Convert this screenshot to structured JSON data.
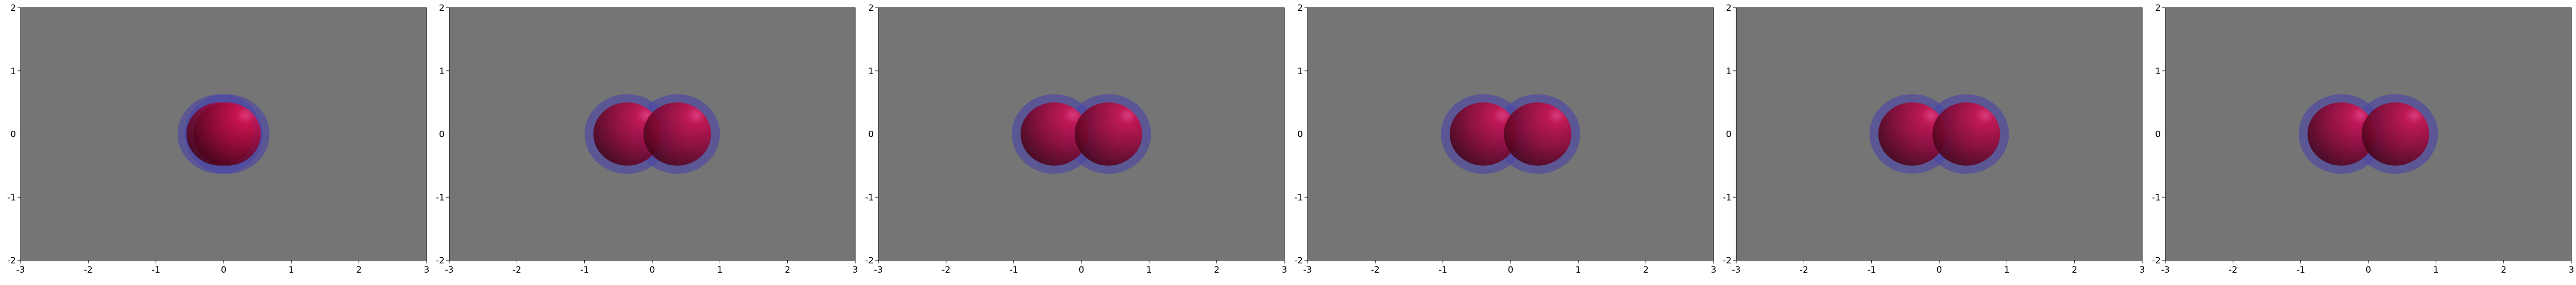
{
  "figure": {
    "background": "#ffffff"
  },
  "chart_data": [
    {
      "type": "scatter",
      "title": "",
      "xlabel": "",
      "ylabel": "",
      "xlim": [
        -3,
        3
      ],
      "ylim": [
        -2,
        2
      ],
      "xticks": [
        "-3",
        "-2",
        "-1",
        "0",
        "1",
        "2",
        "3"
      ],
      "yticks": [
        "-2",
        "-1",
        "0",
        "1",
        "2"
      ],
      "grid": false,
      "background_color": "#757575",
      "spheres": [
        {
          "x": -0.05,
          "y": 0.0,
          "radius": 0.5
        },
        {
          "x": 0.05,
          "y": 0.0,
          "radius": 0.5
        }
      ]
    },
    {
      "type": "scatter",
      "title": "",
      "xlabel": "",
      "ylabel": "",
      "xlim": [
        -3,
        3
      ],
      "ylim": [
        -2,
        2
      ],
      "xticks": [
        "-3",
        "-2",
        "-1",
        "0",
        "1",
        "2",
        "3"
      ],
      "yticks": [
        "-2",
        "-1",
        "0",
        "1",
        "2"
      ],
      "grid": false,
      "background_color": "#757575",
      "spheres": [
        {
          "x": -0.37,
          "y": 0.0,
          "radius": 0.5
        },
        {
          "x": 0.37,
          "y": 0.0,
          "radius": 0.5
        }
      ]
    },
    {
      "type": "scatter",
      "title": "",
      "xlabel": "",
      "ylabel": "",
      "xlim": [
        -3,
        3
      ],
      "ylim": [
        -2,
        2
      ],
      "xticks": [
        "-3",
        "-2",
        "-1",
        "0",
        "1",
        "2",
        "3"
      ],
      "yticks": [
        "-2",
        "-1",
        "0",
        "1",
        "2"
      ],
      "grid": false,
      "background_color": "#757575",
      "spheres": [
        {
          "x": -0.4,
          "y": 0.0,
          "radius": 0.5
        },
        {
          "x": 0.4,
          "y": 0.0,
          "radius": 0.5
        }
      ]
    },
    {
      "type": "scatter",
      "title": "",
      "xlabel": "",
      "ylabel": "",
      "xlim": [
        -3,
        3
      ],
      "ylim": [
        -2,
        2
      ],
      "xticks": [
        "-3",
        "-2",
        "-1",
        "0",
        "1",
        "2",
        "3"
      ],
      "yticks": [
        "-2",
        "-1",
        "0",
        "1",
        "2"
      ],
      "grid": false,
      "background_color": "#757575",
      "spheres": [
        {
          "x": -0.4,
          "y": 0.0,
          "radius": 0.5
        },
        {
          "x": 0.4,
          "y": 0.0,
          "radius": 0.5
        }
      ]
    },
    {
      "type": "scatter",
      "title": "",
      "xlabel": "",
      "ylabel": "",
      "xlim": [
        -3,
        3
      ],
      "ylim": [
        -2,
        2
      ],
      "xticks": [
        "-3",
        "-2",
        "-1",
        "0",
        "1",
        "2",
        "3"
      ],
      "yticks": [
        "-2",
        "-1",
        "0",
        "1",
        "2"
      ],
      "grid": false,
      "background_color": "#757575",
      "spheres": [
        {
          "x": -0.4,
          "y": 0.0,
          "radius": 0.5
        },
        {
          "x": 0.4,
          "y": 0.0,
          "radius": 0.5
        }
      ]
    },
    {
      "type": "scatter",
      "title": "",
      "xlabel": "",
      "ylabel": "",
      "xlim": [
        -3,
        3
      ],
      "ylim": [
        -2,
        2
      ],
      "xticks": [
        "-3",
        "-2",
        "-1",
        "0",
        "1",
        "2",
        "3"
      ],
      "yticks": [
        "-2",
        "-1",
        "0",
        "1",
        "2"
      ],
      "grid": false,
      "background_color": "#757575",
      "spheres": [
        {
          "x": -0.4,
          "y": 0.0,
          "radius": 0.5
        },
        {
          "x": 0.4,
          "y": 0.0,
          "radius": 0.5
        }
      ]
    }
  ]
}
